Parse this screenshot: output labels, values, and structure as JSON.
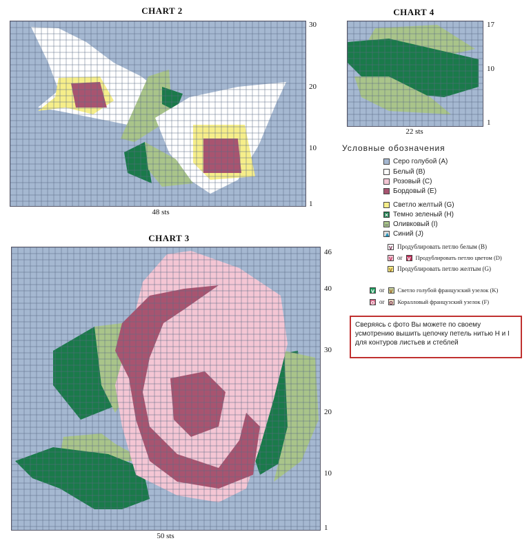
{
  "charts": {
    "chart2": {
      "title": "CHART 2",
      "caption": "48 sts",
      "rows": [
        "30",
        "20",
        "10",
        "1"
      ]
    },
    "chart4": {
      "title": "CHART 4",
      "caption": "22 sts",
      "rows": [
        "17",
        "10",
        "1"
      ]
    },
    "chart3": {
      "title": "CHART 3",
      "caption": "50 sts",
      "rows": [
        "46",
        "40",
        "30",
        "20",
        "10",
        "1"
      ]
    }
  },
  "legend": {
    "title": "Условные обозначения",
    "items": [
      {
        "label": "Серо голубой (A)",
        "color": "#a5b8d1",
        "icon": "gray-blue-swatch"
      },
      {
        "label": "Белый (B)",
        "color": "#ffffff",
        "icon": "white-swatch"
      },
      {
        "label": "Розовый (C)",
        "color": "#f4c6d4",
        "icon": "pink-swatch"
      },
      {
        "label": "Бордовый (E)",
        "color": "#a85470",
        "icon": "burgundy-swatch"
      },
      {
        "label": "Светло желтый (G)",
        "color": "#f6ee8a",
        "icon": "light-yellow-swatch"
      },
      {
        "label": "Темно зеленый (H)",
        "color": "#1a7a4a",
        "icon": "dark-green-x-swatch"
      },
      {
        "label": "Оливковый (I)",
        "color": "#a9c48a",
        "icon": "olive-dash-swatch"
      },
      {
        "label": "Синий (J)",
        "color": "#3aa0c8",
        "icon": "blue-triangle-swatch"
      },
      {
        "label": "Продублировать петлю белым (B)",
        "icon": "v-white-symbol"
      },
      {
        "label": "Продублировать петлю цветом (D)",
        "connector": "or",
        "icon": "v-color-symbol"
      },
      {
        "label": "Продублировать петлю желтым (G)",
        "icon": "v-yellow-symbol"
      },
      {
        "label": "Светло голубой французский узелок (K)",
        "connector": "or",
        "icon": "v-green-knot-symbol"
      },
      {
        "label": "Коралловый французский узелок (F)",
        "connector": "or",
        "icon": "coral-knot-symbol"
      }
    ]
  },
  "note": {
    "text": "Сверяясь с фото Вы можете по своему усмотрению вышить цепочку петель нитью H и I для контуров листьев и стеблей"
  },
  "colors": {
    "gray_blue": "#a5b8d1",
    "white": "#ffffff",
    "pink": "#f4c6d4",
    "burgundy": "#a85470",
    "yellow": "#f6ee8a",
    "dark_green": "#1a7a4a",
    "olive": "#a9c48a",
    "note_border": "#c0302f"
  }
}
